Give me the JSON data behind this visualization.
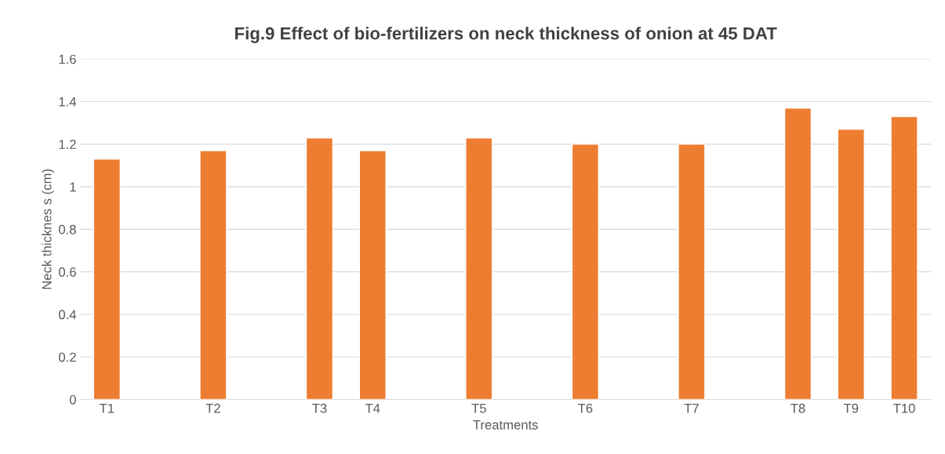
{
  "chart_data": {
    "type": "bar",
    "title": "Fig.9 Effect of bio-fertilizers on neck thickness of onion at 45 DAT",
    "xlabel": "Treatments",
    "ylabel": "Neck thicknes s (cm)",
    "categories": [
      "T1",
      null,
      "T2",
      null,
      "T3",
      "T4",
      null,
      "T5",
      null,
      "T6",
      null,
      "T7",
      null,
      "T8",
      "T9",
      "T10"
    ],
    "values": [
      1.13,
      null,
      1.17,
      null,
      1.23,
      1.17,
      null,
      1.23,
      null,
      1.2,
      null,
      1.2,
      null,
      1.37,
      1.27,
      1.33
    ],
    "color": "#ed7d31",
    "ylim": [
      0,
      1.6
    ],
    "yticks": [
      0,
      0.2,
      0.4,
      0.6,
      0.8,
      1,
      1.2,
      1.4,
      1.6
    ],
    "grid": "y",
    "legend": false
  }
}
